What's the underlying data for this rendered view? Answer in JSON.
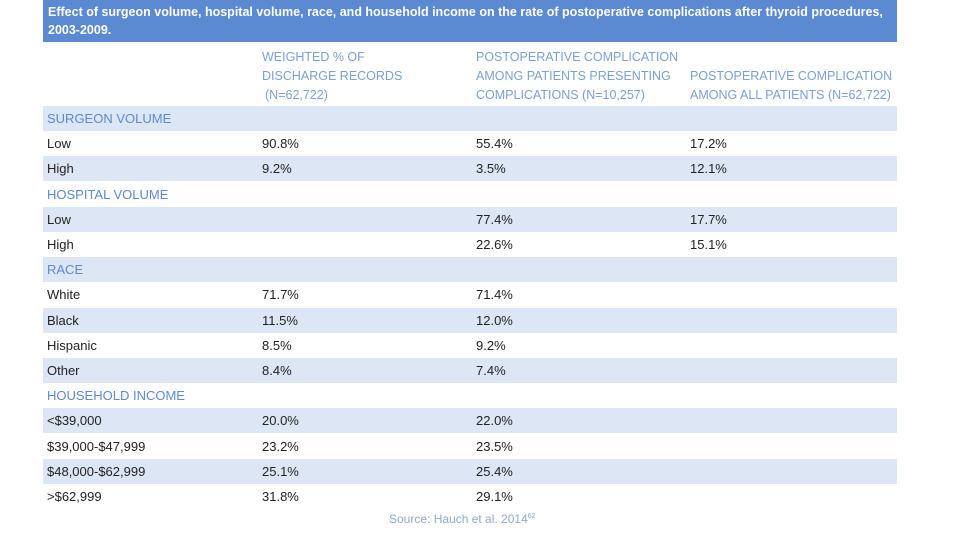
{
  "title": "Effect of surgeon volume, hospital volume, race, and household income on the rate of postoperative complications after thyroid procedures, 2003-2009.",
  "columns": [
    [
      "WEIGHTED % OF",
      "DISCHARGE RECORDS",
      "(N=62,722)"
    ],
    [
      "POSTOPERATIVE COMPLICATION",
      "AMONG PATIENTS PRESENTING",
      "COMPLICATIONS (N=10,257)"
    ],
    [
      "POSTOPERATIVE COMPLICATION",
      "AMONG ALL PATIENTS (N=62,722)"
    ]
  ],
  "rows": [
    {
      "type": "section",
      "label": "SURGEON VOLUME"
    },
    {
      "type": "data",
      "label": "Low",
      "v1": "90.8%",
      "v2": "55.4%",
      "v3": "17.2%"
    },
    {
      "type": "data",
      "label": "High",
      "v1": "9.2%",
      "v2": "3.5%",
      "v3": "12.1%"
    },
    {
      "type": "section",
      "label": "HOSPITAL VOLUME"
    },
    {
      "type": "data",
      "label": "Low",
      "v1": "",
      "v2": "77.4%",
      "v3": "17.7%"
    },
    {
      "type": "data",
      "label": "High",
      "v1": "",
      "v2": "22.6%",
      "v3": "15.1%"
    },
    {
      "type": "section",
      "label": "RACE"
    },
    {
      "type": "data",
      "label": "White",
      "v1": "71.7%",
      "v2": "71.4%",
      "v3": ""
    },
    {
      "type": "data",
      "label": "Black",
      "v1": "11.5%",
      "v2": "12.0%",
      "v3": ""
    },
    {
      "type": "data",
      "label": "Hispanic",
      "v1": "8.5%",
      "v2": "9.2%",
      "v3": ""
    },
    {
      "type": "data",
      "label": "Other",
      "v1": "8.4%",
      "v2": "7.4%",
      "v3": ""
    },
    {
      "type": "section",
      "label": "HOUSEHOLD INCOME"
    },
    {
      "type": "data",
      "label": "<$39,000",
      "v1": "20.0%",
      "v2": "22.0%",
      "v3": ""
    },
    {
      "type": "data",
      "label": "$39,000-$47,999",
      "v1": "23.2%",
      "v2": "23.5%",
      "v3": ""
    },
    {
      "type": "data",
      "label": "$48,000-$62,999",
      "v1": "25.1%",
      "v2": "25.4%",
      "v3": ""
    },
    {
      "type": "data",
      "label": ">$62,999",
      "v1": "31.8%",
      "v2": "29.1%",
      "v3": ""
    }
  ],
  "source": {
    "text": "Source: Hauch et al. 2014",
    "ref": "62"
  },
  "colors": {
    "header_bg": "#5b89d2",
    "section_text": "#5b89d2",
    "shade": "#dce6f5",
    "col_head": "#7aa0d6"
  }
}
